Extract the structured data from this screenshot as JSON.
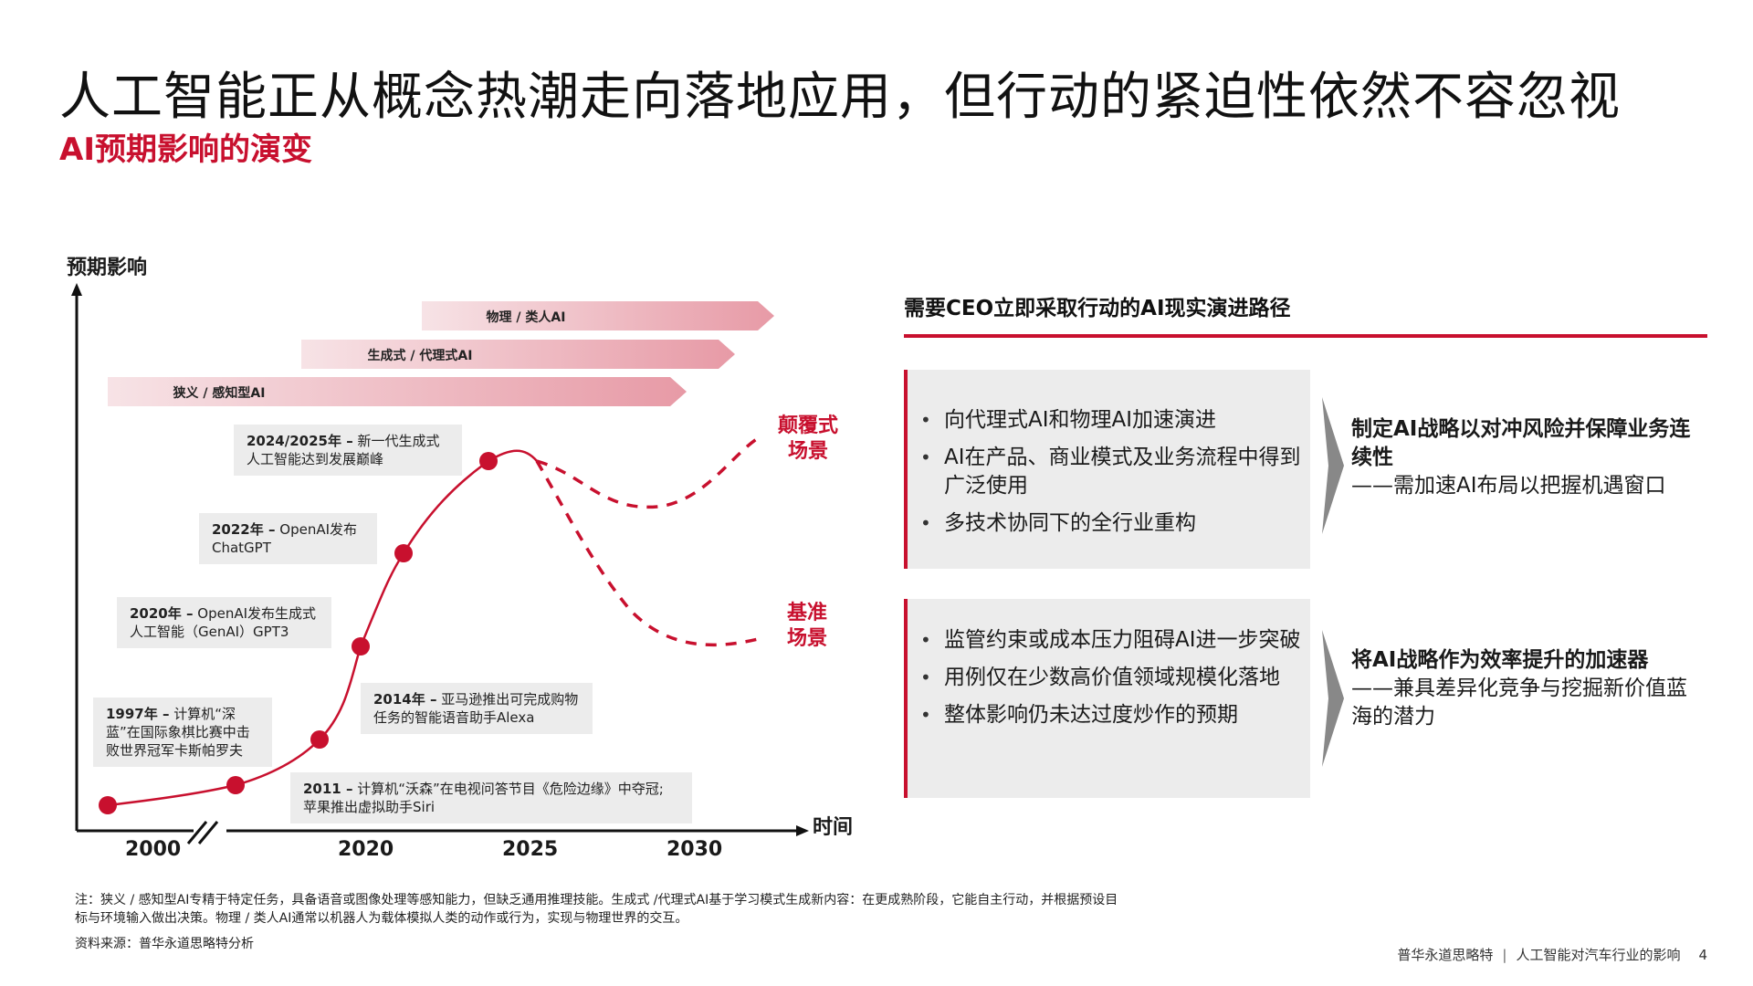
{
  "title": "人工智能正从概念热潮走向落地应用，但行动的紧迫性依然不容忽视",
  "subtitle": "AI预期影响的演变",
  "colors": {
    "accent": "#c8102e",
    "panel": "#ececec"
  },
  "chart_data": {
    "type": "line",
    "ylabel": "预期影响",
    "xlabel": "时间",
    "x_ticks": [
      "2000",
      "2020",
      "2025",
      "2030"
    ],
    "axis_break": true,
    "bands": [
      "物理 / 类人AI",
      "生成式 / 代理式AI",
      "狭义 / 感知型AI"
    ],
    "milestones": [
      {
        "year": 1997,
        "impact": 0.05,
        "label_year": "1997年 –",
        "label_text": "计算机“深蓝”在国际象棋比赛中击败世界冠军卡斯帕罗夫"
      },
      {
        "year": 2011,
        "impact": 0.09,
        "label_year": "2011 –",
        "label_text": "计算机“沃森”在电视问答节目《危险边缘》中夺冠; 苹果推出虚拟助手Siri"
      },
      {
        "year": 2014,
        "impact": 0.19,
        "label_year": "2014年 –",
        "label_text": "亚马逊推出可完成购物任务的智能语音助手Alexa"
      },
      {
        "year": 2020,
        "impact": 0.4,
        "label_year": "2020年 –",
        "label_text": "OpenAI发布生成式人工智能（GenAI）GPT3"
      },
      {
        "year": 2022,
        "impact": 0.62,
        "label_year": "2022年 –",
        "label_text": "OpenAI发布ChatGPT"
      },
      {
        "year": 2024.5,
        "impact": 0.84,
        "label_year": "2024/2025年 –",
        "label_text": "新一代生成式人工智能达到发展巅峰"
      }
    ],
    "scenarios": [
      {
        "name": "颠覆式场景",
        "name_line1": "颠覆式",
        "name_line2": "场景"
      },
      {
        "name": "基准场景",
        "name_line1": "基准",
        "name_line2": "场景"
      }
    ]
  },
  "right": {
    "heading": "需要CEO立即采取行动的AI现实演进路径",
    "panel1": {
      "bullets": [
        "向代理式AI和物理AI加速演进",
        "AI在产品、商业模式及业务流程中得到广泛使用",
        "多技术协同下的全行业重构"
      ],
      "outcome_strong": "制定AI战略以对冲风险并保障业务连续性",
      "outcome_rest": "——需加速AI布局以把握机遇窗口"
    },
    "panel2": {
      "bullets": [
        "监管约束或成本压力阻碍AI进一步突破",
        "用例仅在少数高价值领域规模化落地",
        "整体影响仍未达过度炒作的预期"
      ],
      "outcome_strong": "将AI战略作为效率提升的加速器",
      "outcome_rest": "——兼具差异化竞争与挖掘新价值蓝海的潜力"
    }
  },
  "note": "注：狭义 / 感知型AI专精于特定任务，具备语音或图像处理等感知能力，但缺乏通用推理技能。生成式 /代理式AI基于学习模式生成新内容：在更成熟阶段，它能自主行动，并根据预设目标与环境输入做出决策。物理 / 类人AI通常以机器人为载体模拟人类的动作或行为，实现与物理世界的交互。",
  "source": "资料来源：普华永道思略特分析",
  "footer": {
    "brand": "普华永道思略特",
    "separator": "|",
    "topic": "人工智能对汽车行业的影响",
    "page": "4"
  }
}
